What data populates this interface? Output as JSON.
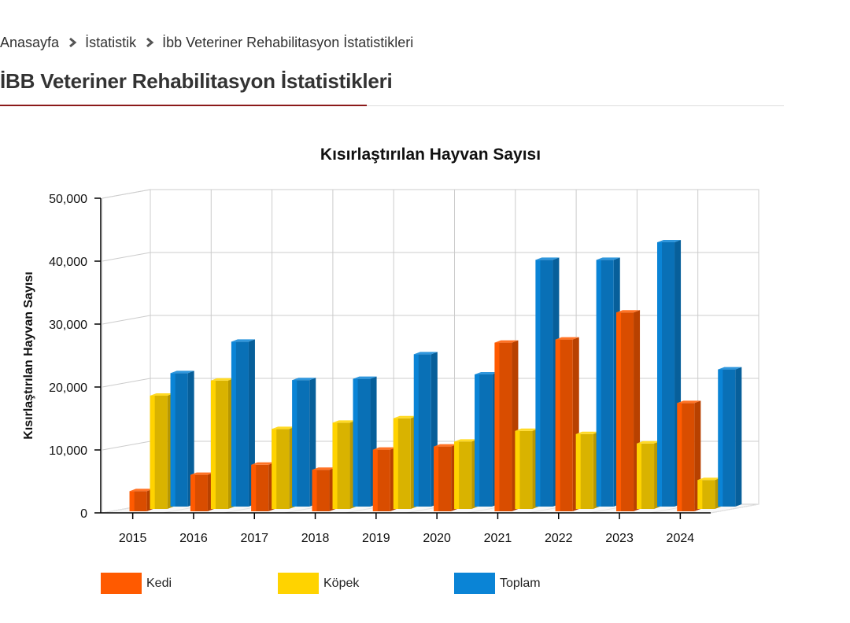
{
  "breadcrumb": {
    "items": [
      "Anasayfa",
      "İstatistik",
      "İbb Veteriner Rehabilitasyon İstatistikleri"
    ]
  },
  "page": {
    "title": "İBB Veteriner Rehabilitasyon İstatistikleri"
  },
  "colors": {
    "accent": "#8b1a1a",
    "kedi": "#ff5a00",
    "kopek": "#ffd300",
    "toplam": "#0a84d6"
  },
  "chart_data": {
    "type": "bar",
    "style": "3d-clustered",
    "title": "Kısırlaştırılan Hayvan Sayısı",
    "xlabel": "",
    "ylabel": "Kısırlaştırılan Hayvan Sayısı",
    "ylim": [
      0,
      50000
    ],
    "yticks": [
      "0",
      "10,000",
      "20,000",
      "30,000",
      "40,000",
      "50,000"
    ],
    "grid": true,
    "legend_position": "bottom-left",
    "categories": [
      "2015",
      "2016",
      "2017",
      "2018",
      "2019",
      "2020",
      "2021",
      "2022",
      "2023",
      "2024"
    ],
    "series": [
      {
        "name": "Kedi",
        "color": "#ff5a00",
        "values": [
          3200,
          5800,
          7400,
          6600,
          9800,
          10300,
          26800,
          27300,
          31600,
          17200
        ]
      },
      {
        "name": "Köpek",
        "color": "#ffd300",
        "values": [
          18000,
          20400,
          12700,
          13700,
          14400,
          10700,
          12400,
          11900,
          10400,
          4600
        ]
      },
      {
        "name": "Toplam",
        "color": "#0a84d6",
        "values": [
          21200,
          26200,
          20100,
          20300,
          24200,
          21000,
          39200,
          39200,
          42000,
          21800
        ]
      }
    ]
  }
}
